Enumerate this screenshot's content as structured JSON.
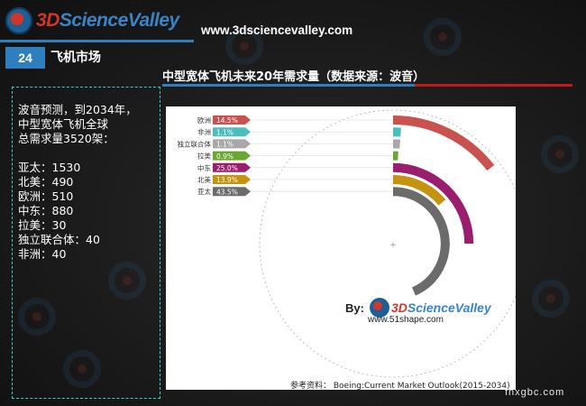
{
  "header": {
    "logo_text_a": "3D",
    "logo_text_b": "ScienceValley",
    "site_url": "www.3dsciencevalley.com",
    "section_number": "24",
    "section_title": "飞机市场"
  },
  "sidebar": {
    "summary_lines": [
      "波音预测，到2034年，",
      "中型宽体飞机全球",
      "总需求量3520架："
    ],
    "stats": [
      {
        "label": "亚太：",
        "value": "1530"
      },
      {
        "label": "北美：",
        "value": "490"
      },
      {
        "label": "欧洲：",
        "value": "510"
      },
      {
        "label": "中东：",
        "value": "880"
      },
      {
        "label": "拉美：",
        "value": "30"
      },
      {
        "label": "独立联合体：",
        "value": "40"
      },
      {
        "label": "非洲：",
        "value": "40"
      }
    ]
  },
  "chart_data": {
    "type": "radial-bar",
    "title": "中型宽体飞机未来20年需求量（数据来源：波音）",
    "categories": [
      "欧洲",
      "非洲",
      "独立联合体",
      "拉美",
      "中东",
      "北美",
      "亚太"
    ],
    "values": [
      14.5,
      1.1,
      1.1,
      0.9,
      25.0,
      13.9,
      43.5
    ],
    "labels": [
      "14.5%",
      "1.1%",
      "1.1%",
      "0.9%",
      "25.0%",
      "13.9%",
      "43.5%"
    ],
    "unit": "%",
    "colors": [
      "#c9524f",
      "#4bbfbe",
      "#a8a8a8",
      "#6aa632",
      "#9b1d6e",
      "#c4930f",
      "#6b6b6b"
    ]
  },
  "credit": {
    "by_label": "By:",
    "logo_text_a": "3D",
    "logo_text_b": "ScienceValley",
    "website": "www.51shape.com"
  },
  "reference": "参考资料： Boeing:Current Market Outlook(2015-2034)",
  "watermark": "fnxgbc.com"
}
